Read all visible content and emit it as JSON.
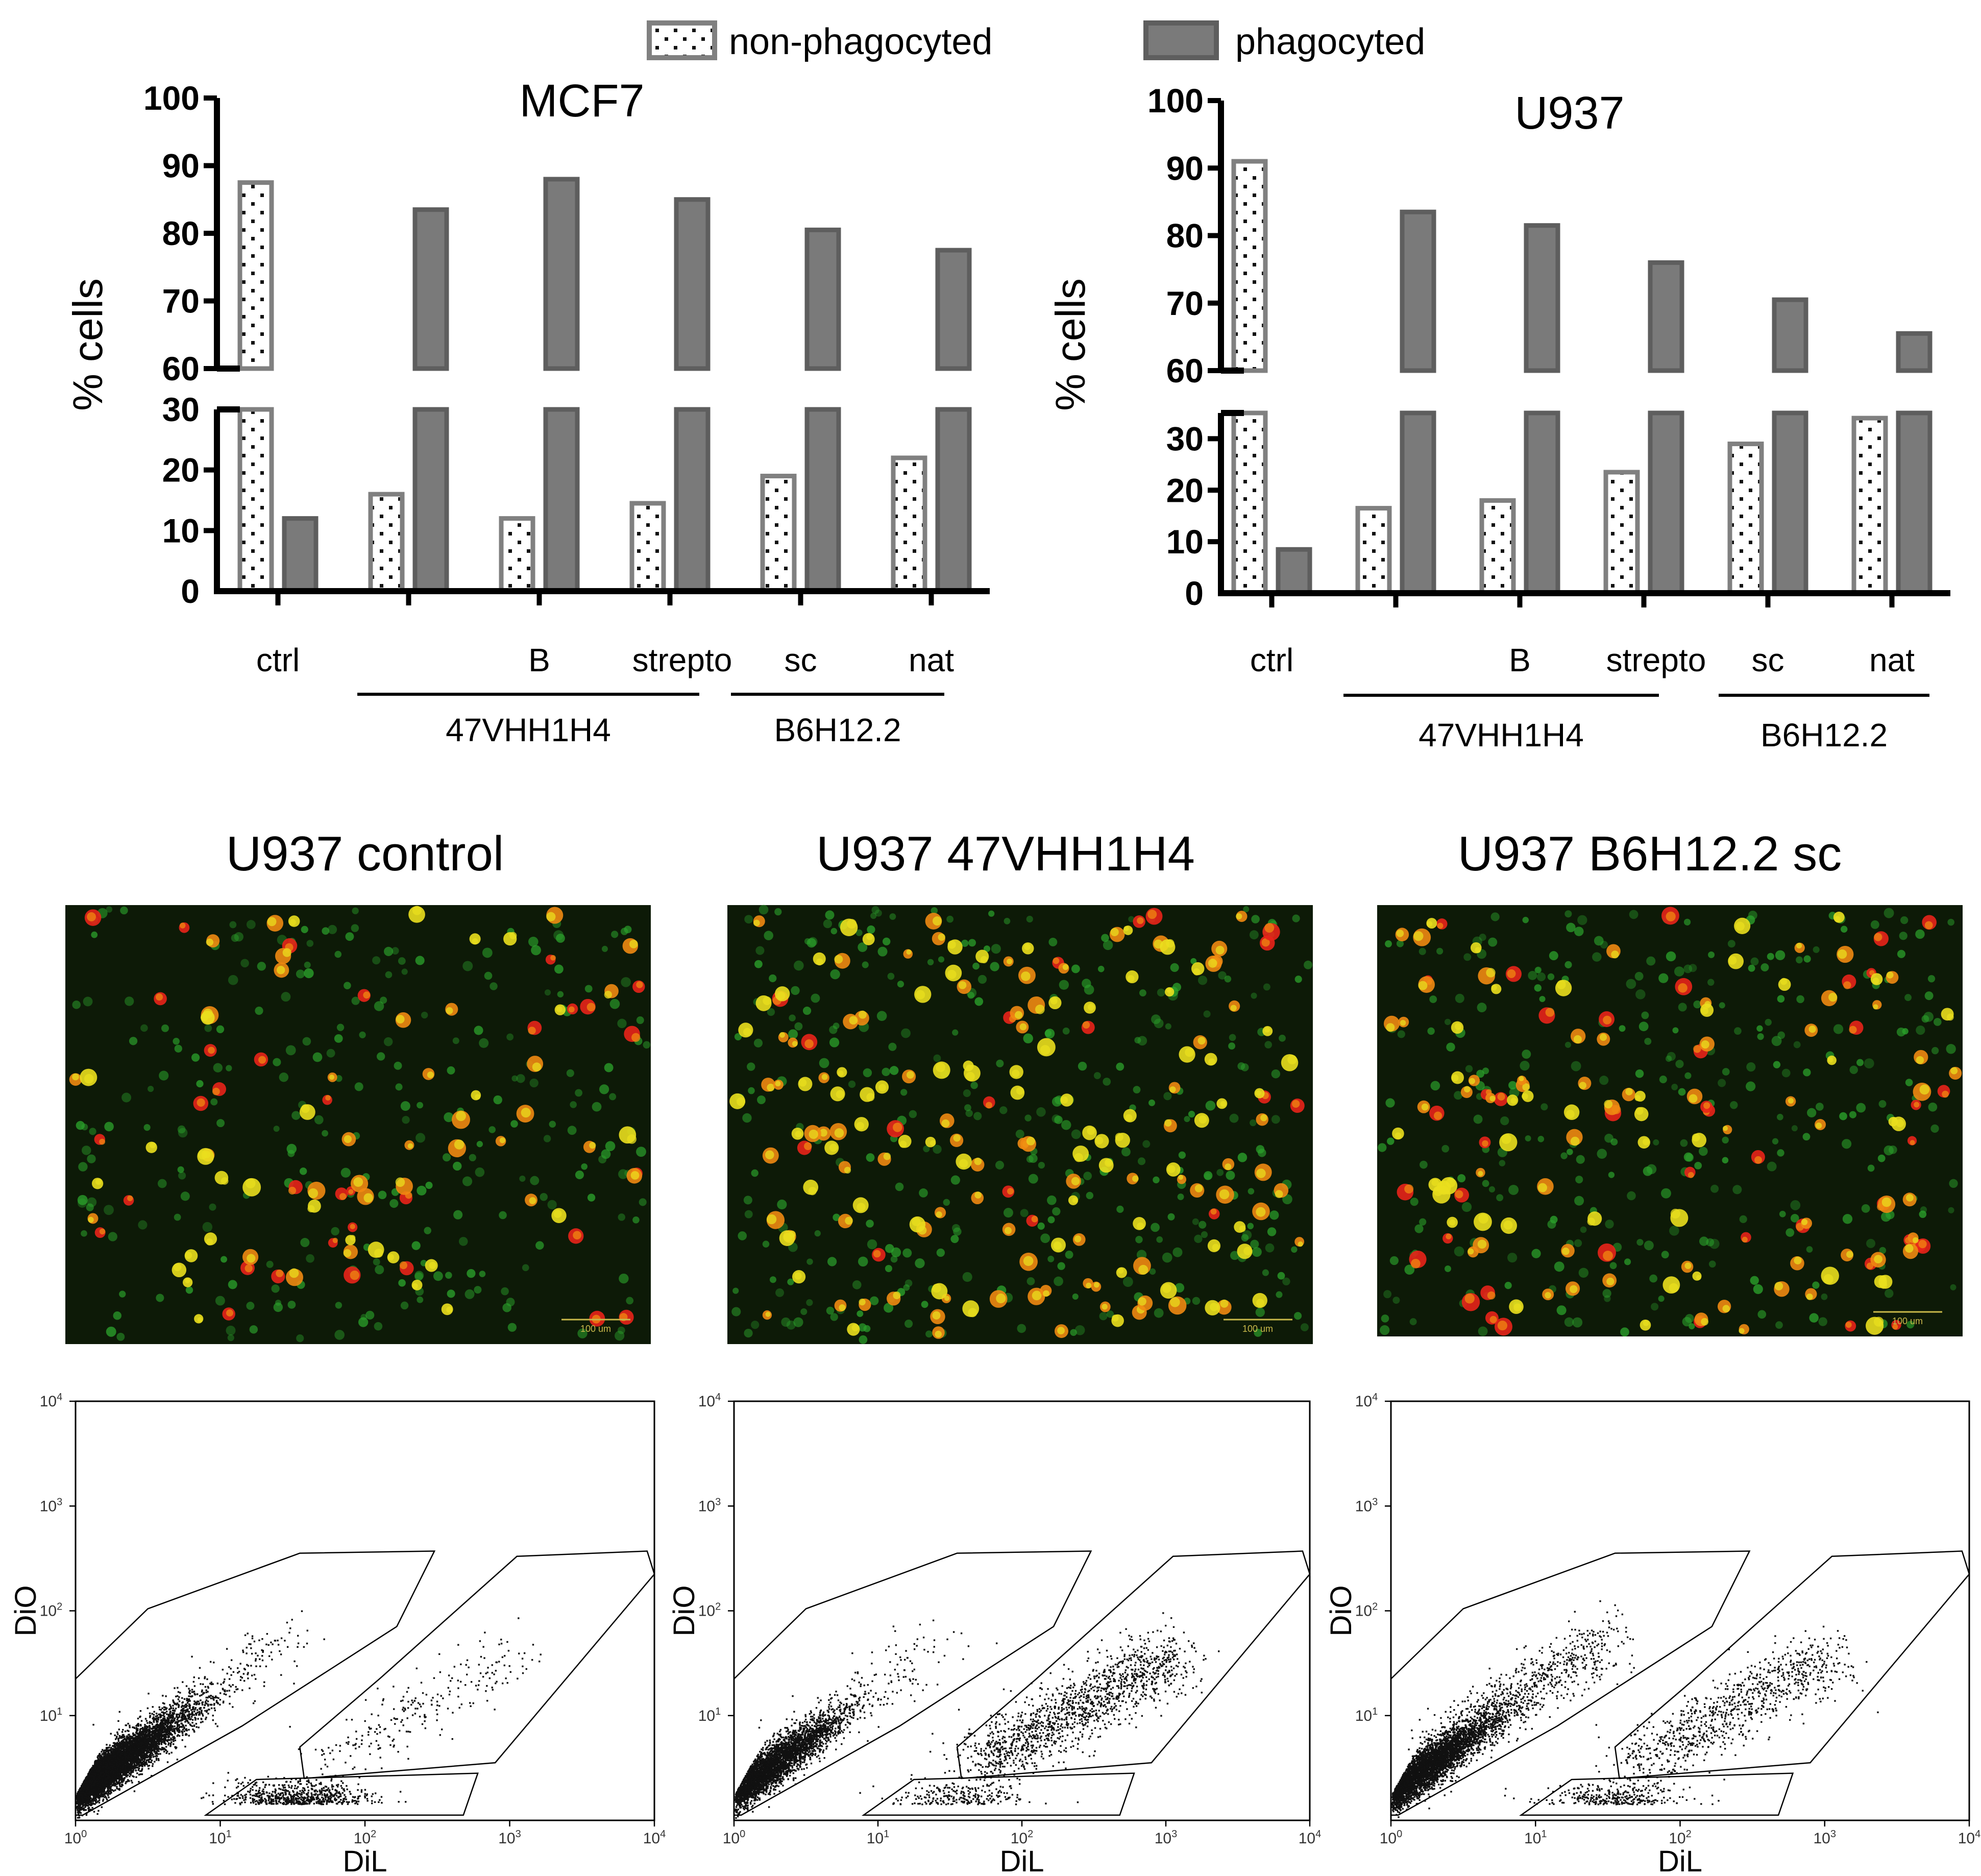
{
  "legend": {
    "non_phagocyted": "non-phagocyted",
    "phagocyted": "phagocyted"
  },
  "colors": {
    "phagocyted_fill": "#7a7a7a",
    "phagocyted_edge": "#5e5e5e",
    "non_phago_fill": "#ffffff",
    "non_phago_edge": "#808080",
    "dot": "#111111",
    "micro_bg": "#0d1a07",
    "micro_green": "#2ba12b",
    "micro_red": "#e8241a",
    "micro_yellow": "#eadf1e",
    "micro_orange": "#f08a12"
  },
  "chart_data": [
    {
      "type": "bar",
      "title": "MCF7",
      "ylabel": "% cells",
      "categories": [
        "ctrl",
        "47VHH1H4",
        "47VHH1H4 B",
        "47VHH1H4 strepto",
        "B6H12.2 sc",
        "B6H12.2 nat"
      ],
      "category_labels": [
        "ctrl",
        "",
        "B",
        "strepto",
        "sc",
        "nat"
      ],
      "groups": [
        {
          "label": "47VHH1H4",
          "from": 1,
          "to": 3
        },
        {
          "label": "B6H12.2",
          "from": 4,
          "to": 5
        }
      ],
      "series": [
        {
          "name": "non-phagocyted",
          "values": [
            87.5,
            16,
            12,
            14.5,
            19,
            22
          ]
        },
        {
          "name": "phagocyted",
          "values": [
            12,
            83.5,
            88,
            85,
            80.5,
            77.5
          ]
        }
      ],
      "broken_axis": {
        "lower": [
          0,
          30
        ],
        "upper": [
          60,
          100
        ]
      },
      "yticks_lower": [
        "0",
        "10",
        "20",
        "30"
      ],
      "yticks_upper": [
        "60",
        "70",
        "80",
        "90",
        "100"
      ]
    },
    {
      "type": "bar",
      "title": "U937",
      "ylabel": "% cells",
      "categories": [
        "ctrl",
        "47VHH1H4",
        "47VHH1H4 B",
        "47VHH1H4 strepto",
        "B6H12.2 sc",
        "B6H12.2 nat"
      ],
      "category_labels": [
        "ctrl",
        "",
        "B",
        "strepto",
        "sc",
        "nat"
      ],
      "groups": [
        {
          "label": "47VHH1H4",
          "from": 1,
          "to": 3
        },
        {
          "label": "B6H12.2",
          "from": 4,
          "to": 5
        }
      ],
      "series": [
        {
          "name": "non-phagocyted",
          "values": [
            91,
            16.5,
            18,
            23.5,
            29,
            34
          ]
        },
        {
          "name": "phagocyted",
          "values": [
            8.5,
            83.5,
            81.5,
            76,
            70.5,
            65.5
          ]
        }
      ],
      "broken_axis": {
        "lower": [
          0,
          35
        ],
        "upper": [
          60,
          100
        ]
      },
      "yticks_lower": [
        "0",
        "10",
        "20",
        "30"
      ],
      "yticks_upper": [
        "60",
        "70",
        "80",
        "90",
        "100"
      ]
    }
  ],
  "micrographs": [
    {
      "title": "U937 control",
      "scale_bar": "100 um",
      "green": 260,
      "red": 34,
      "yellow": 28,
      "orange": 32
    },
    {
      "title": "U937 47VHH1H4",
      "scale_bar": "100 um",
      "green": 330,
      "red": 18,
      "yellow": 70,
      "orange": 80
    },
    {
      "title": "U937 B6H12.2 sc",
      "scale_bar": "100 um",
      "green": 300,
      "red": 44,
      "yellow": 42,
      "orange": 56
    }
  ],
  "flow_plots": [
    {
      "xlabel": "DiL",
      "ylabel": "DiO",
      "main_n": 7000,
      "diag_n": 220,
      "right_n": 240,
      "bottom_n": 650
    },
    {
      "xlabel": "DiL",
      "ylabel": "DiO",
      "main_n": 3800,
      "diag_n": 160,
      "right_n": 1400,
      "bottom_n": 240
    },
    {
      "xlabel": "DiL",
      "ylabel": "DiO",
      "main_n": 4200,
      "diag_n": 700,
      "right_n": 900,
      "bottom_n": 320
    }
  ],
  "flow_axis": {
    "x_ticks": [
      {
        "b": "10",
        "e": "0"
      },
      {
        "b": "10",
        "e": "1"
      },
      {
        "b": "10",
        "e": "2"
      },
      {
        "b": "10",
        "e": "3"
      },
      {
        "b": "10",
        "e": "4"
      }
    ],
    "y_ticks": [
      {
        "b": "10",
        "e": "1"
      },
      {
        "b": "10",
        "e": "2"
      },
      {
        "b": "10",
        "e": "3"
      },
      {
        "b": "10",
        "e": "4"
      }
    ]
  }
}
